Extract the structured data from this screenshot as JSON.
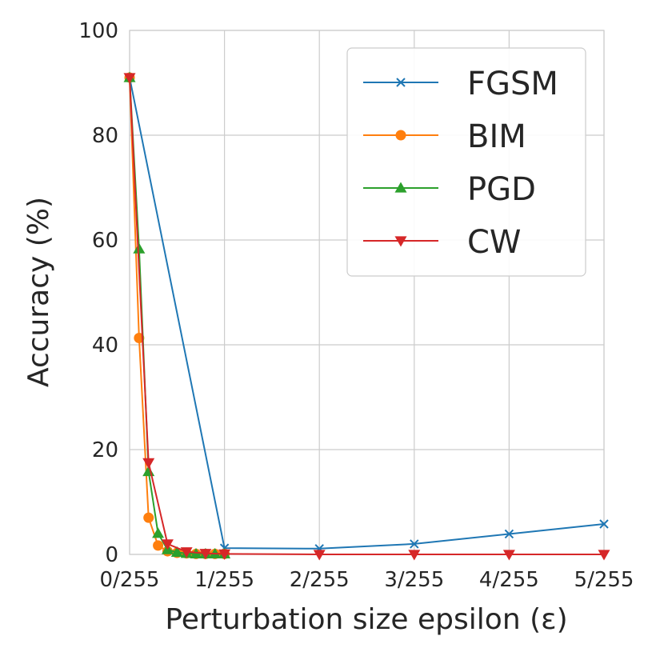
{
  "chart_data": {
    "type": "line",
    "title": "",
    "xlabel": "Perturbation size epsilon (ε)",
    "ylabel": "Accuracy (%)",
    "xlim": [
      0,
      5
    ],
    "ylim": [
      0,
      100
    ],
    "x_ticks": [
      0,
      1,
      2,
      3,
      4,
      5
    ],
    "x_tick_labels": [
      "0/255",
      "1/255",
      "2/255",
      "3/255",
      "4/255",
      "5/255"
    ],
    "y_ticks": [
      0,
      20,
      40,
      60,
      80,
      100
    ],
    "y_tick_labels": [
      "0",
      "20",
      "40",
      "60",
      "80",
      "100"
    ],
    "grid": true,
    "legend_position": "top-right",
    "series": [
      {
        "name": "FGSM",
        "color": "#1f77b4",
        "marker": "x",
        "x": [
          0,
          1,
          2,
          3,
          4,
          5
        ],
        "y": [
          91,
          1.2,
          1.1,
          2.0,
          3.9,
          5.8
        ]
      },
      {
        "name": "BIM",
        "color": "#ff7f0e",
        "marker": "circle",
        "x": [
          0,
          0.1,
          0.2,
          0.3,
          0.4,
          0.5,
          0.6,
          0.7,
          0.8,
          0.9,
          1.0
        ],
        "y": [
          91,
          41.3,
          7.0,
          1.7,
          0.6,
          0.3,
          0.2,
          0.1,
          0.1,
          0.1,
          0.1
        ]
      },
      {
        "name": "PGD",
        "color": "#2ca02c",
        "marker": "triangle-up",
        "x": [
          0,
          0.1,
          0.2,
          0.3,
          0.4,
          0.5,
          0.6,
          0.7,
          0.8,
          0.9,
          1.0
        ],
        "y": [
          91,
          58.3,
          15.8,
          4.0,
          0.9,
          0.4,
          0.2,
          0.1,
          0.1,
          0.1,
          0.1
        ]
      },
      {
        "name": "CW",
        "color": "#d62728",
        "marker": "triangle-down",
        "x": [
          0,
          0.2,
          0.4,
          0.6,
          0.8,
          1.0,
          2,
          3,
          4,
          5
        ],
        "y": [
          91,
          17.5,
          2.0,
          0.5,
          0.2,
          0.1,
          0,
          0,
          0,
          0
        ]
      }
    ]
  }
}
